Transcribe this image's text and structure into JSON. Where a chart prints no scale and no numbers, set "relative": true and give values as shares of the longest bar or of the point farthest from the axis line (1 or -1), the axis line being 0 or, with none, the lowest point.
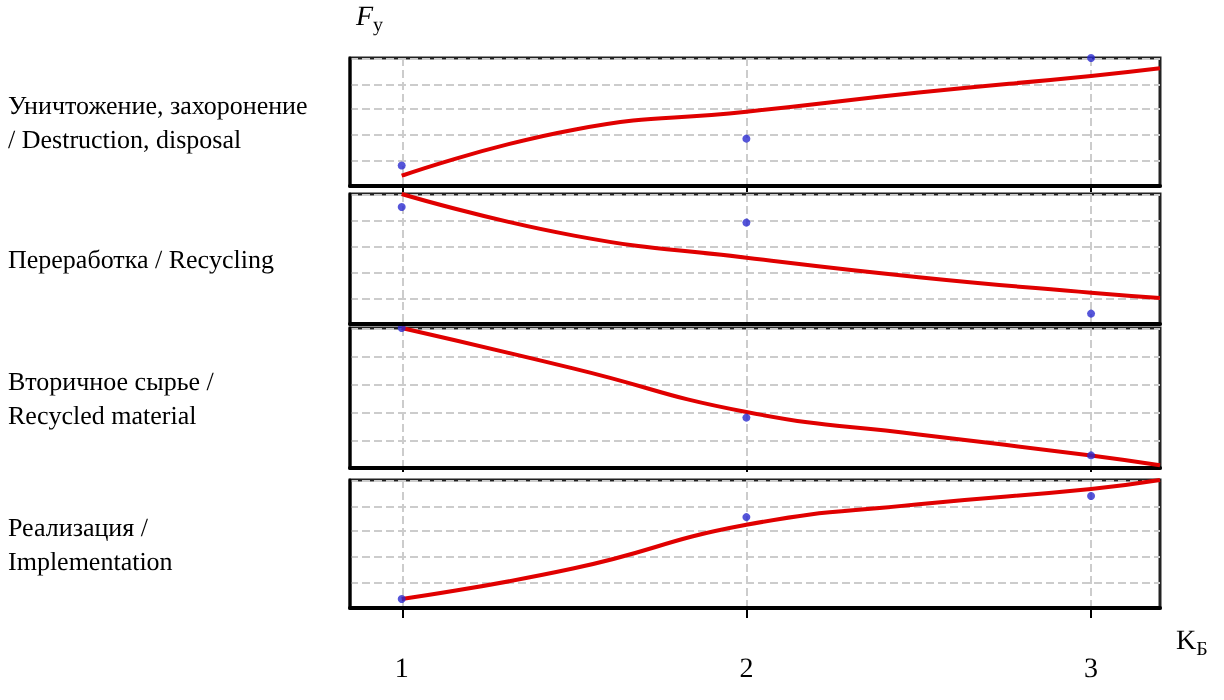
{
  "chart_data": [
    {
      "type": "line",
      "ylabel": "Уничтожение, захоронение / Destruction, disposal",
      "annotations": [
        "F$_{y}$"
      ],
      "relative": true,
      "xlim": [
        0.85,
        3.2
      ],
      "xticks": [
        1,
        2,
        3
      ],
      "tick_labels": false,
      "grid": true,
      "series": [
        {
          "color": "#e00000",
          "x": [
            1,
            1.5,
            2,
            2.5,
            3,
            3.2
          ],
          "values": [
            0.08,
            0.44,
            0.58,
            0.73,
            0.86,
            0.92
          ]
        },
        {
          "type": "scatter",
          "marker": "circle",
          "color": "#2a2ad0",
          "x": [
            1,
            2,
            3
          ],
          "values": [
            0.16,
            0.37,
            1
          ]
        }
      ]
    },
    {
      "type": "line",
      "ylabel": "Переработка / Recycling",
      "relative": true,
      "xlim": [
        0.85,
        3.2
      ],
      "xticks": [
        1,
        2,
        3
      ],
      "tick_labels": false,
      "grid": true,
      "series": [
        {
          "color": "#e00000",
          "x": [
            1,
            1.5,
            2,
            2.5,
            3,
            3.2
          ],
          "values": [
            1,
            0.68,
            0.51,
            0.36,
            0.24,
            0.2
          ]
        },
        {
          "type": "scatter",
          "marker": "circle",
          "color": "#2a2ad0",
          "x": [
            1,
            2,
            3
          ],
          "values": [
            0.9,
            0.78,
            0.08
          ]
        }
      ]
    },
    {
      "type": "line",
      "ylabel": "Вторичное сырье / Recycled material",
      "relative": true,
      "xlim": [
        0.85,
        3.2
      ],
      "xticks": [
        1,
        2,
        3
      ],
      "tick_labels": false,
      "grid": true,
      "series": [
        {
          "color": "#e00000",
          "x": [
            1,
            1.5,
            2,
            2.5,
            3,
            3.2
          ],
          "values": [
            1,
            0.71,
            0.4,
            0.24,
            0.09,
            0.02
          ]
        },
        {
          "type": "scatter",
          "marker": "circle",
          "color": "#2a2ad0",
          "x": [
            1,
            2,
            3
          ],
          "values": [
            1,
            0.36,
            0.09
          ]
        }
      ]
    },
    {
      "type": "line",
      "ylabel": "Реализация / Implementation",
      "xlabel": "K$_{Б}$",
      "relative": true,
      "xlim": [
        0.85,
        3.2
      ],
      "xticks": [
        1,
        2,
        3
      ],
      "tick_labels": "x",
      "grid": true,
      "series": [
        {
          "color": "#e00000",
          "x": [
            1,
            1.5,
            2,
            2.5,
            3,
            3.2
          ],
          "values": [
            0.07,
            0.31,
            0.65,
            0.81,
            0.93,
            1
          ]
        },
        {
          "type": "scatter",
          "marker": "circle",
          "color": "#2a2ad0",
          "x": [
            1,
            2,
            3
          ],
          "values": [
            0.07,
            0.71,
            0.875
          ]
        }
      ]
    }
  ]
}
